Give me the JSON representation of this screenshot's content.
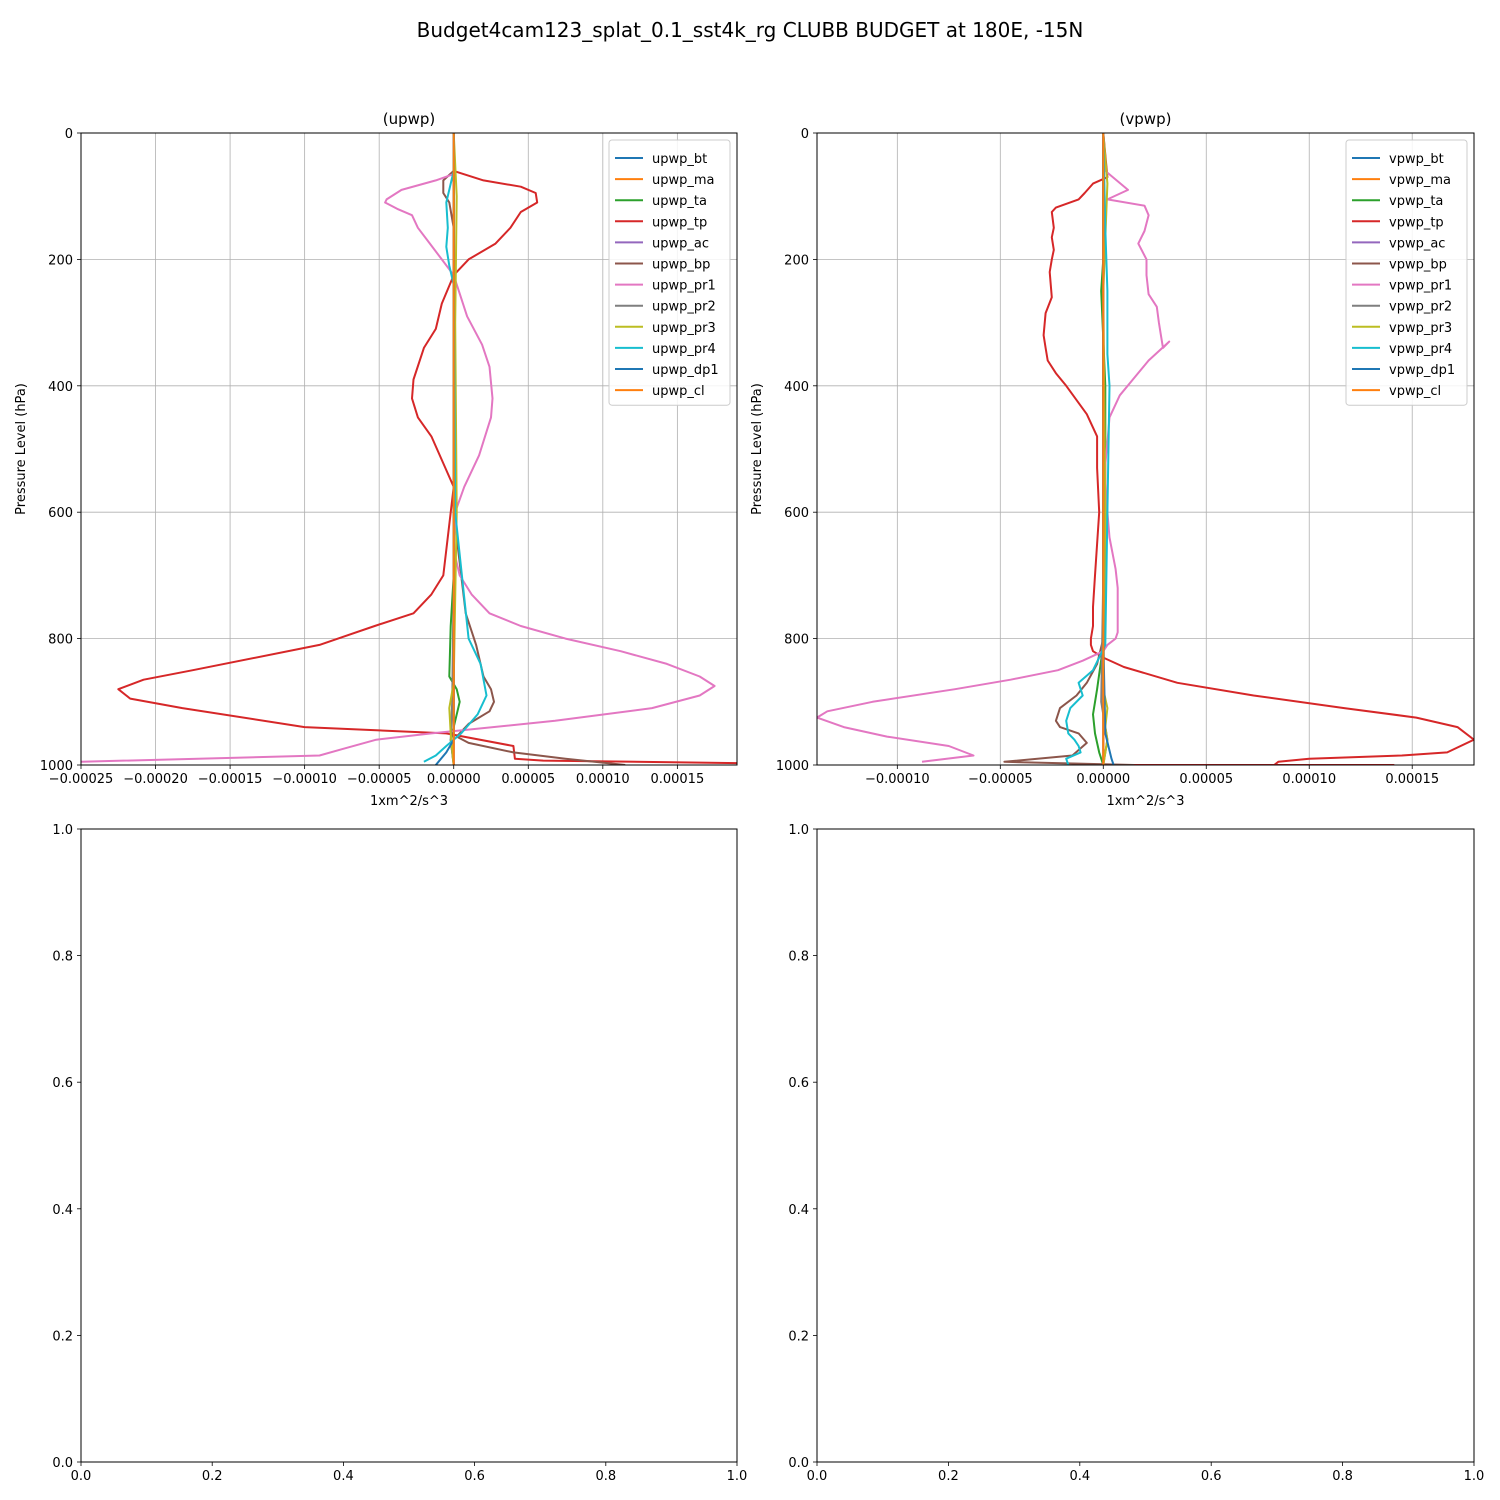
{
  "figure": {
    "title": "Budget4cam123_splat_0.1_sst4k_rg CLUBB BUDGET at 180E, -15N",
    "series_colors": {
      "bt": "#1f77b4",
      "ma": "#ff7f0e",
      "ta": "#2ca02c",
      "tp": "#d62728",
      "ac": "#9467bd",
      "bp": "#8c564b",
      "pr1": "#e377c2",
      "pr2": "#7f7f7f",
      "pr3": "#bcbd22",
      "pr4": "#17becf",
      "dp1": "#1f77b4",
      "cl": "#ff7f0e"
    }
  },
  "chart_data": [
    {
      "type": "line",
      "title": "(upwp)",
      "xlabel": "1xm^2/s^3",
      "ylabel": "Pressure Level (hPa)",
      "xlim": [
        -0.00025,
        0.00019
      ],
      "ylim": [
        1000,
        0
      ],
      "xticks": [
        -0.00025,
        -0.0002,
        -0.00015,
        -0.0001,
        -5e-05,
        0,
        5e-05,
        0.0001,
        0.00015
      ],
      "xtick_labels": [
        "−0.00025",
        "−0.00020",
        "−0.00015",
        "−0.00010",
        "−0.00005",
        "0.00000",
        "0.00005",
        "0.00010",
        "0.00015"
      ],
      "yticks": [
        0,
        200,
        400,
        600,
        800,
        1000
      ],
      "ytick_labels": [
        "0",
        "200",
        "400",
        "600",
        "800",
        "1000"
      ],
      "grid": true,
      "legend_position": "upper right",
      "series": [
        {
          "name": "upwp_bt",
          "color": "#1f77b4",
          "x": [
            0,
            0,
            0,
            0,
            0,
            0,
            0
          ],
          "y": [
            0,
            200,
            400,
            600,
            800,
            950,
            1000
          ]
        },
        {
          "name": "upwp_ma",
          "color": "#ff7f0e",
          "x": [
            0,
            0,
            0,
            0,
            0,
            0,
            0
          ],
          "y": [
            0,
            200,
            400,
            600,
            800,
            950,
            1000
          ]
        },
        {
          "name": "upwp_ta",
          "color": "#2ca02c",
          "x": [
            0,
            0,
            0,
            0,
            0,
            0,
            -2e-06,
            -3e-06,
            2e-06,
            4e-06,
            1e-06,
            -2e-06,
            0
          ],
          "y": [
            0,
            100,
            200,
            400,
            600,
            700,
            780,
            860,
            880,
            900,
            930,
            960,
            1000
          ]
        },
        {
          "name": "upwp_tp",
          "color": "#d62728",
          "x": [
            0,
            0,
            2e-05,
            4.5e-05,
            5.5e-05,
            5.6e-05,
            4.5e-05,
            3.8e-05,
            2.8e-05,
            1e-05,
            0,
            -8e-06,
            -1.2e-05,
            -2e-05,
            -2.7e-05,
            -2.8e-05,
            -2.4e-05,
            -1.5e-05,
            0,
            -7e-06,
            -1.5e-05,
            -2.7e-05,
            -5.3e-05,
            -9e-05,
            -0.000175,
            -0.000208,
            -0.000225,
            -0.000217,
            -0.000182,
            -0.0001,
            -5e-06,
            4e-05,
            4.1e-05,
            6e-05,
            0.00019
          ],
          "y": [
            0,
            60,
            75,
            85,
            95,
            110,
            125,
            150,
            175,
            200,
            225,
            270,
            310,
            340,
            390,
            420,
            450,
            480,
            560,
            700,
            730,
            760,
            780,
            810,
            850,
            865,
            880,
            895,
            910,
            940,
            950,
            970,
            990,
            993,
            997
          ]
        },
        {
          "name": "upwp_ac",
          "color": "#9467bd",
          "x": [
            0,
            0,
            0,
            0,
            0,
            0,
            0
          ],
          "y": [
            0,
            200,
            400,
            600,
            800,
            950,
            1000
          ]
        },
        {
          "name": "upwp_bp",
          "color": "#8c564b",
          "x": [
            0,
            0,
            -7e-06,
            -7e-06,
            -3e-06,
            0,
            0,
            0,
            8e-06,
            1.5e-05,
            2e-05,
            2.5e-05,
            2.7e-05,
            2.4e-05,
            1e-05,
            2e-06,
            1e-05,
            4e-05,
            7.5e-05,
            0.000115
          ],
          "y": [
            0,
            60,
            75,
            95,
            110,
            150,
            200,
            600,
            760,
            810,
            860,
            880,
            900,
            915,
            935,
            955,
            965,
            980,
            990,
            1000
          ]
        },
        {
          "name": "upwp_pr1",
          "color": "#e377c2",
          "x": [
            0,
            0,
            -1.2e-05,
            -3.5e-05,
            -4.5e-05,
            -4.6e-05,
            -3.8e-05,
            -2.8e-05,
            -2.4e-05,
            -1.6e-05,
            -8e-06,
            0,
            9e-06,
            1.9e-05,
            2.4e-05,
            2.6e-05,
            2.5e-05,
            1.7e-05,
            7e-06,
            1e-06,
            0,
            4e-06,
            1.2e-05,
            2.4e-05,
            4.5e-05,
            7.5e-05,
            0.000112,
            0.000143,
            0.000165,
            0.000175,
            0.000165,
            0.000133,
            6.8e-05,
            -1.5e-05,
            -5.2e-05,
            -7.5e-05,
            -9e-05,
            -0.00025
          ],
          "y": [
            0,
            65,
            75,
            90,
            105,
            110,
            120,
            130,
            150,
            175,
            200,
            225,
            290,
            335,
            370,
            420,
            450,
            510,
            560,
            600,
            660,
            700,
            730,
            760,
            780,
            800,
            820,
            840,
            860,
            875,
            890,
            910,
            930,
            950,
            960,
            975,
            985,
            995
          ]
        },
        {
          "name": "upwp_pr2",
          "color": "#7f7f7f",
          "x": [
            0,
            0,
            0,
            0,
            -1e-06,
            -2e-06,
            0
          ],
          "y": [
            0,
            200,
            400,
            700,
            900,
            960,
            1000
          ]
        },
        {
          "name": "upwp_pr3",
          "color": "#bcbd22",
          "x": [
            0,
            2e-06,
            1e-06,
            2e-06,
            0,
            -3e-06,
            -2e-06,
            0
          ],
          "y": [
            0,
            100,
            300,
            600,
            870,
            910,
            950,
            1000
          ]
        },
        {
          "name": "upwp_pr4",
          "color": "#17becf",
          "x": [
            0,
            0,
            -5e-06,
            -4e-06,
            -5e-06,
            -3e-06,
            0,
            1e-06,
            1e-05,
            1.8e-05,
            2.2e-05,
            1.6e-05,
            5e-06,
            -5e-06,
            -1.2e-05,
            -2e-05
          ],
          "y": [
            0,
            60,
            110,
            150,
            180,
            210,
            240,
            600,
            800,
            840,
            890,
            920,
            950,
            970,
            985,
            995
          ]
        },
        {
          "name": "upwp_dp1",
          "color": "#1f77b4",
          "x": [
            0,
            0,
            0,
            0,
            0,
            0,
            -5e-06,
            -1.2e-05
          ],
          "y": [
            0,
            300,
            600,
            800,
            900,
            960,
            980,
            1000
          ]
        },
        {
          "name": "upwp_cl",
          "color": "#ff7f0e",
          "x": [
            0,
            0,
            0,
            0,
            0,
            0,
            0
          ],
          "y": [
            0,
            200,
            400,
            600,
            800,
            950,
            1000
          ]
        }
      ]
    },
    {
      "type": "line",
      "title": "(vpwp)",
      "xlabel": "1xm^2/s^3",
      "ylabel": "Pressure Level (hPa)",
      "xlim": [
        -0.000139,
        0.00018
      ],
      "ylim": [
        1000,
        0
      ],
      "xticks": [
        -0.0001,
        -5e-05,
        0,
        5e-05,
        0.0001,
        0.00015
      ],
      "xtick_labels": [
        "−0.00010",
        "−0.00005",
        "0.00000",
        "0.00005",
        "0.00010",
        "0.00015"
      ],
      "yticks": [
        0,
        200,
        400,
        600,
        800,
        1000
      ],
      "ytick_labels": [
        "0",
        "200",
        "400",
        "600",
        "800",
        "1000"
      ],
      "grid": true,
      "legend_position": "upper right",
      "series": [
        {
          "name": "vpwp_bt",
          "color": "#1f77b4",
          "x": [
            0,
            0,
            0,
            0,
            0,
            0,
            0
          ],
          "y": [
            0,
            200,
            400,
            600,
            800,
            950,
            1000
          ]
        },
        {
          "name": "vpwp_ma",
          "color": "#ff7f0e",
          "x": [
            0,
            0,
            0,
            0,
            0,
            0,
            0
          ],
          "y": [
            0,
            200,
            400,
            600,
            800,
            950,
            1000
          ]
        },
        {
          "name": "vpwp_ta",
          "color": "#2ca02c",
          "x": [
            0,
            0,
            1e-06,
            -1e-06,
            1e-06,
            1e-06,
            0,
            -3e-06,
            -5e-06,
            -4e-06,
            -2e-06,
            0
          ],
          "y": [
            0,
            80,
            150,
            250,
            400,
            700,
            810,
            880,
            920,
            950,
            980,
            1000
          ]
        },
        {
          "name": "vpwp_tp",
          "color": "#d62728",
          "x": [
            0,
            2e-06,
            -5e-06,
            -9e-06,
            -1.2e-05,
            -2.3e-05,
            -2.5e-05,
            -2.4e-05,
            -2.5e-05,
            -2.4e-05,
            -2.5e-05,
            -2.6e-05,
            -2.5e-05,
            -2.8e-05,
            -2.9e-05,
            -2.8e-05,
            -2.7e-05,
            -2.3e-05,
            -1.8e-05,
            -8e-06,
            -3e-06,
            -3e-06,
            -2e-06,
            -3e-06,
            -4e-06,
            -5e-06,
            -5e-06,
            -6e-06,
            -6e-06,
            -5e-06,
            0,
            1e-05,
            3.6e-05,
            7.3e-05,
            0.000117,
            0.000152,
            0.000172,
            0.00018,
            0.000167,
            0.000145,
            0.0001,
            8.5e-05,
            8.3e-05,
            0.000141,
            0
          ],
          "y": [
            0,
            70,
            80,
            95,
            105,
            118,
            125,
            150,
            165,
            185,
            200,
            220,
            260,
            285,
            320,
            340,
            360,
            380,
            400,
            445,
            480,
            530,
            600,
            650,
            700,
            750,
            780,
            800,
            810,
            820,
            830,
            845,
            870,
            890,
            910,
            925,
            940,
            960,
            980,
            985,
            990,
            995,
            1000,
            1000,
            1000
          ]
        },
        {
          "name": "vpwp_ac",
          "color": "#9467bd",
          "x": [
            0,
            0,
            0,
            0,
            0,
            0,
            0
          ],
          "y": [
            0,
            200,
            400,
            600,
            800,
            950,
            1000
          ]
        },
        {
          "name": "vpwp_bp",
          "color": "#8c564b",
          "x": [
            0,
            0,
            0,
            -3e-06,
            -8e-06,
            -1.3e-05,
            -2.1e-05,
            -2.3e-05,
            -2.1e-05,
            -1.2e-05,
            -8e-06,
            -1.5e-05,
            -4.8e-05,
            1.5e-05
          ],
          "y": [
            0,
            300,
            800,
            840,
            870,
            890,
            910,
            930,
            940,
            950,
            965,
            985,
            995,
            1000
          ]
        },
        {
          "name": "vpwp_pr1",
          "color": "#e377c2",
          "x": [
            0,
            1e-06,
            1.2e-05,
            2e-06,
            2e-05,
            2.2e-05,
            2e-05,
            1.7e-05,
            2.1e-05,
            2.1e-05,
            2.2e-05,
            2.6e-05,
            2.7e-05,
            2.8e-05,
            2.9e-05,
            3.2e-05,
            2.2e-05,
            8e-06,
            3e-06,
            2e-06,
            1e-06,
            1e-06,
            2e-06,
            3e-06,
            6e-06,
            7e-06,
            7e-06,
            7e-06,
            6e-06,
            2e-06,
            0,
            -1e-05,
            -2.2e-05,
            -4.5e-05,
            -7.2e-05,
            -0.000112,
            -0.000134,
            -0.000139,
            -0.000126,
            -0.000105,
            -7.5e-05,
            -6.3e-05,
            -8.8e-05
          ],
          "y": [
            0,
            60,
            90,
            105,
            115,
            130,
            155,
            175,
            200,
            225,
            255,
            275,
            300,
            320,
            340,
            330,
            360,
            415,
            450,
            490,
            525,
            550,
            600,
            640,
            690,
            720,
            760,
            790,
            800,
            810,
            820,
            835,
            850,
            865,
            880,
            900,
            915,
            925,
            940,
            955,
            970,
            985,
            995
          ]
        },
        {
          "name": "vpwp_pr2",
          "color": "#7f7f7f",
          "x": [
            0,
            0,
            0,
            0,
            -1e-06,
            2e-06,
            0
          ],
          "y": [
            0,
            200,
            400,
            700,
            900,
            960,
            1000
          ]
        },
        {
          "name": "vpwp_pr3",
          "color": "#bcbd22",
          "x": [
            0,
            2e-06,
            0,
            1e-06,
            0,
            2e-06,
            1e-06,
            2e-06,
            1e-06,
            0
          ],
          "y": [
            0,
            80,
            250,
            600,
            880,
            910,
            940,
            960,
            980,
            1000
          ]
        },
        {
          "name": "vpwp_pr4",
          "color": "#17becf",
          "x": [
            0,
            1e-06,
            2e-06,
            2e-06,
            3e-06,
            2e-06,
            1e-06,
            -5e-06,
            -1.2e-05,
            -1e-05,
            -1.6e-05,
            -1.8e-05,
            -1.7e-05,
            -1.4e-05,
            -1.2e-05,
            -1.1e-05,
            -1.8e-05,
            -1.7e-05
          ],
          "y": [
            0,
            150,
            250,
            350,
            400,
            600,
            810,
            850,
            870,
            890,
            910,
            930,
            950,
            960,
            970,
            980,
            990,
            1000
          ]
        },
        {
          "name": "vpwp_dp1",
          "color": "#1f77b4",
          "x": [
            0,
            0,
            0,
            0,
            1e-06,
            4e-06,
            5e-06
          ],
          "y": [
            0,
            200,
            400,
            800,
            950,
            990,
            1000
          ]
        },
        {
          "name": "vpwp_cl",
          "color": "#ff7f0e",
          "x": [
            0,
            0,
            0,
            0,
            0,
            0,
            0
          ],
          "y": [
            0,
            200,
            400,
            600,
            800,
            950,
            1000
          ]
        }
      ]
    },
    {
      "type": "line",
      "title": "",
      "xlabel": "",
      "ylabel": "",
      "xlim": [
        0,
        1
      ],
      "ylim": [
        0,
        1
      ],
      "xticks": [
        0,
        0.2,
        0.4,
        0.6,
        0.8,
        1
      ],
      "xtick_labels": [
        "0.0",
        "0.2",
        "0.4",
        "0.6",
        "0.8",
        "1.0"
      ],
      "yticks": [
        0,
        0.2,
        0.4,
        0.6,
        0.8,
        1
      ],
      "ytick_labels": [
        "0.0",
        "0.2",
        "0.4",
        "0.6",
        "0.8",
        "1.0"
      ],
      "grid": false,
      "series": []
    },
    {
      "type": "line",
      "title": "",
      "xlabel": "",
      "ylabel": "",
      "xlim": [
        0,
        1
      ],
      "ylim": [
        0,
        1
      ],
      "xticks": [
        0,
        0.2,
        0.4,
        0.6,
        0.8,
        1
      ],
      "xtick_labels": [
        "0.0",
        "0.2",
        "0.4",
        "0.6",
        "0.8",
        "1.0"
      ],
      "yticks": [
        0,
        0.2,
        0.4,
        0.6,
        0.8,
        1
      ],
      "ytick_labels": [
        "0.0",
        "0.2",
        "0.4",
        "0.6",
        "0.8",
        "1.0"
      ],
      "grid": false,
      "series": []
    }
  ]
}
